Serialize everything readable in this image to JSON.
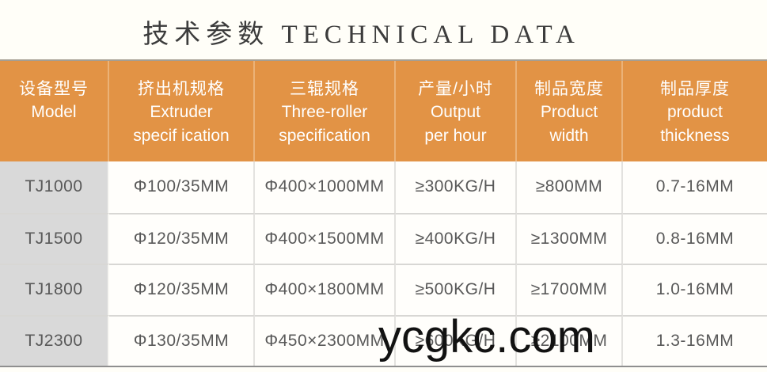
{
  "page": {
    "title": "技术参数 TECHNICAL DATA",
    "watermark": "ycgkc.com"
  },
  "table": {
    "columns": [
      {
        "zh": "设备型号",
        "en": "Model"
      },
      {
        "zh": "挤出机规格",
        "en": "Extruder\nspecif ication"
      },
      {
        "zh": "三辊规格",
        "en": "Three-roller\nspecification"
      },
      {
        "zh": "产量/小时",
        "en": "Output\nper hour"
      },
      {
        "zh": "制品宽度",
        "en": "Product\nwidth"
      },
      {
        "zh": "制品厚度",
        "en": "product\nthickness"
      }
    ],
    "rows": [
      [
        "TJ1000",
        "Φ100/35MM",
        "Φ400×1000MM",
        "≥300KG/H",
        "≥800MM",
        "0.7-16MM"
      ],
      [
        "TJ1500",
        "Φ120/35MM",
        "Φ400×1500MM",
        "≥400KG/H",
        "≥1300MM",
        "0.8-16MM"
      ],
      [
        "TJ1800",
        "Φ120/35MM",
        "Φ400×1800MM",
        "≥500KG/H",
        "≥1700MM",
        "1.0-16MM"
      ],
      [
        "TJ2300",
        "Φ130/35MM",
        "Φ450×2300MM",
        "≥600KG/H",
        "≥2100MM",
        "1.3-16MM"
      ]
    ]
  },
  "colors": {
    "header_bg": "#E29345",
    "header_text": "#FFFFFF",
    "model_column_bg": "#D9D9D9",
    "cell_text": "#595959",
    "page_bg": "#FFFEF8",
    "table_top_border": "#A59E92",
    "table_bottom_border": "#8F8F8F",
    "watermark_text": "#121212"
  }
}
